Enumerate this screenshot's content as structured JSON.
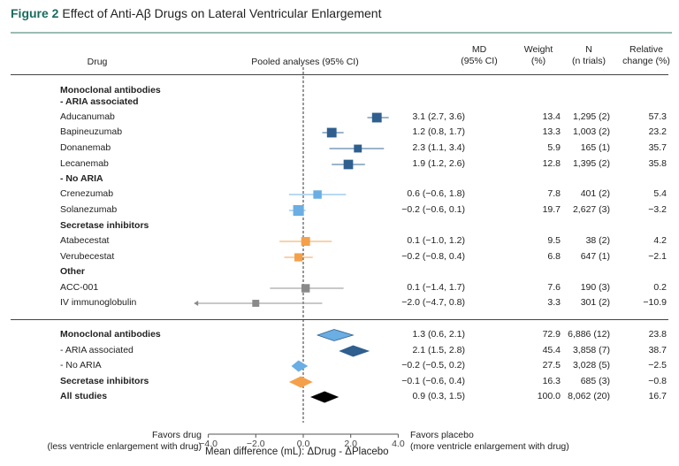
{
  "figure": {
    "label": "Figure 2",
    "title": "Effect of Anti-Aβ Drugs on Lateral Ventricular Enlargement"
  },
  "headers": {
    "drug": "Drug",
    "pooled": "Pooled analyses (95% CI)",
    "md": [
      "MD",
      "(95% CI)"
    ],
    "weight": [
      "Weight",
      "(%)"
    ],
    "n": [
      "N",
      "(n trials)"
    ],
    "rel": [
      "Relative",
      "change (%)"
    ]
  },
  "footer": {
    "favors_drug": [
      "Favors drug",
      "(less ventricle enlargement with drug)"
    ],
    "favors_placebo": [
      "Favors placebo",
      "(more ventricle enlargement with drug)"
    ],
    "xlabel": "Mean difference (mL): ΔDrug - ΔPlacebo"
  },
  "colors": {
    "aria": "#2e5f8e",
    "no_aria": "#6aaee3",
    "secretase": "#f4a04a",
    "other": "#8a8a8a",
    "all": "#000000",
    "title_accent": "#1a6b5f"
  },
  "chart_data": {
    "type": "forest",
    "title": "Effect of Anti-Aβ Drugs on Lateral Ventricular Enlargement",
    "xlabel": "Mean difference (mL): ΔDrug - ΔPlacebo",
    "xlim": [
      -4.0,
      4.0
    ],
    "xticks": [
      "−4.0",
      "−2.0",
      "0.0",
      "2.0",
      "4.0"
    ],
    "xtick_values": [
      -4,
      -2,
      0,
      2,
      4
    ],
    "reference_line": 0,
    "rows": [
      {
        "kind": "header",
        "label": "Monoclonal antibodies",
        "label2": "- ARIA associated"
      },
      {
        "kind": "study",
        "label": "Aducanumab",
        "md": 3.1,
        "lo": 2.7,
        "hi": 3.6,
        "md_text": "3.1 (2.7, 3.6)",
        "weight": "13.4",
        "n": "1,295 (2)",
        "rel": "57.3",
        "group": "aria"
      },
      {
        "kind": "study",
        "label": "Bapineuzumab",
        "md": 1.2,
        "lo": 0.8,
        "hi": 1.7,
        "md_text": "1.2 (0.8, 1.7)",
        "weight": "13.3",
        "n": "1,003 (2)",
        "rel": "23.2",
        "group": "aria"
      },
      {
        "kind": "study",
        "label": "Donanemab",
        "md": 2.3,
        "lo": 1.1,
        "hi": 3.4,
        "md_text": "2.3 (1.1, 3.4)",
        "weight": "5.9",
        "n": "165 (1)",
        "rel": "35.7",
        "group": "aria"
      },
      {
        "kind": "study",
        "label": "Lecanemab",
        "md": 1.9,
        "lo": 1.2,
        "hi": 2.6,
        "md_text": "1.9 (1.2, 2.6)",
        "weight": "12.8",
        "n": "1,395 (2)",
        "rel": "35.8",
        "group": "aria"
      },
      {
        "kind": "header",
        "label": "- No ARIA"
      },
      {
        "kind": "study",
        "label": "Crenezumab",
        "md": 0.6,
        "lo": -0.6,
        "hi": 1.8,
        "md_text": "0.6 (−0.6, 1.8)",
        "weight": "7.8",
        "n": "401 (2)",
        "rel": "5.4",
        "group": "no_aria"
      },
      {
        "kind": "study",
        "label": "Solanezumab",
        "md": -0.2,
        "lo": -0.6,
        "hi": 0.1,
        "md_text": "−0.2 (−0.6, 0.1)",
        "weight": "19.7",
        "n": "2,627 (3)",
        "rel": "−3.2",
        "group": "no_aria"
      },
      {
        "kind": "header",
        "label": "Secretase inhibitors"
      },
      {
        "kind": "study",
        "label": "Atabecestat",
        "md": 0.1,
        "lo": -1.0,
        "hi": 1.2,
        "md_text": "0.1 (−1.0, 1.2)",
        "weight": "9.5",
        "n": "38 (2)",
        "rel": "4.2",
        "group": "secretase"
      },
      {
        "kind": "study",
        "label": "Verubecestat",
        "md": -0.2,
        "lo": -0.8,
        "hi": 0.4,
        "md_text": "−0.2 (−0.8, 0.4)",
        "weight": "6.8",
        "n": "647 (1)",
        "rel": "−2.1",
        "group": "secretase"
      },
      {
        "kind": "header",
        "label": "Other"
      },
      {
        "kind": "study",
        "label": "ACC-001",
        "md": 0.1,
        "lo": -1.4,
        "hi": 1.7,
        "md_text": "0.1 (−1.4, 1.7)",
        "weight": "7.6",
        "n": "190 (3)",
        "rel": "0.2",
        "group": "other"
      },
      {
        "kind": "study",
        "label": "IV immunoglobulin",
        "md": -2.0,
        "lo": -4.7,
        "hi": 0.8,
        "md_text": "−2.0 (−4.7, 0.8)",
        "weight": "3.3",
        "n": "301 (2)",
        "rel": "−10.9",
        "group": "other",
        "truncated_left": true
      }
    ],
    "summaries": [
      {
        "label": "Monoclonal antibodies",
        "bold": true,
        "md": 1.3,
        "lo": 0.6,
        "hi": 2.1,
        "md_text": "1.3 (0.6, 2.1)",
        "weight": "72.9",
        "n": "6,886 (12)",
        "rel": "23.8",
        "group": "no_aria",
        "outlined": true
      },
      {
        "label": "- ARIA associated",
        "bold": false,
        "md": 2.1,
        "lo": 1.5,
        "hi": 2.8,
        "md_text": "2.1 (1.5, 2.8)",
        "weight": "45.4",
        "n": "3,858 (7)",
        "rel": "38.7",
        "group": "aria"
      },
      {
        "label": "- No ARIA",
        "bold": false,
        "md": -0.2,
        "lo": -0.5,
        "hi": 0.2,
        "md_text": "−0.2 (−0.5, 0.2)",
        "weight": "27.5",
        "n": "3,028 (5)",
        "rel": "−2.5",
        "group": "no_aria"
      },
      {
        "label": "Secretase inhibitors",
        "bold": true,
        "md": -0.1,
        "lo": -0.6,
        "hi": 0.4,
        "md_text": "−0.1 (−0.6, 0.4)",
        "weight": "16.3",
        "n": "685 (3)",
        "rel": "−0.8",
        "group": "secretase"
      },
      {
        "label": "All studies",
        "bold": true,
        "md": 0.9,
        "lo": 0.3,
        "hi": 1.5,
        "md_text": "0.9 (0.3, 1.5)",
        "weight": "100.0",
        "n": "8,062 (20)",
        "rel": "16.7",
        "group": "all"
      }
    ]
  }
}
